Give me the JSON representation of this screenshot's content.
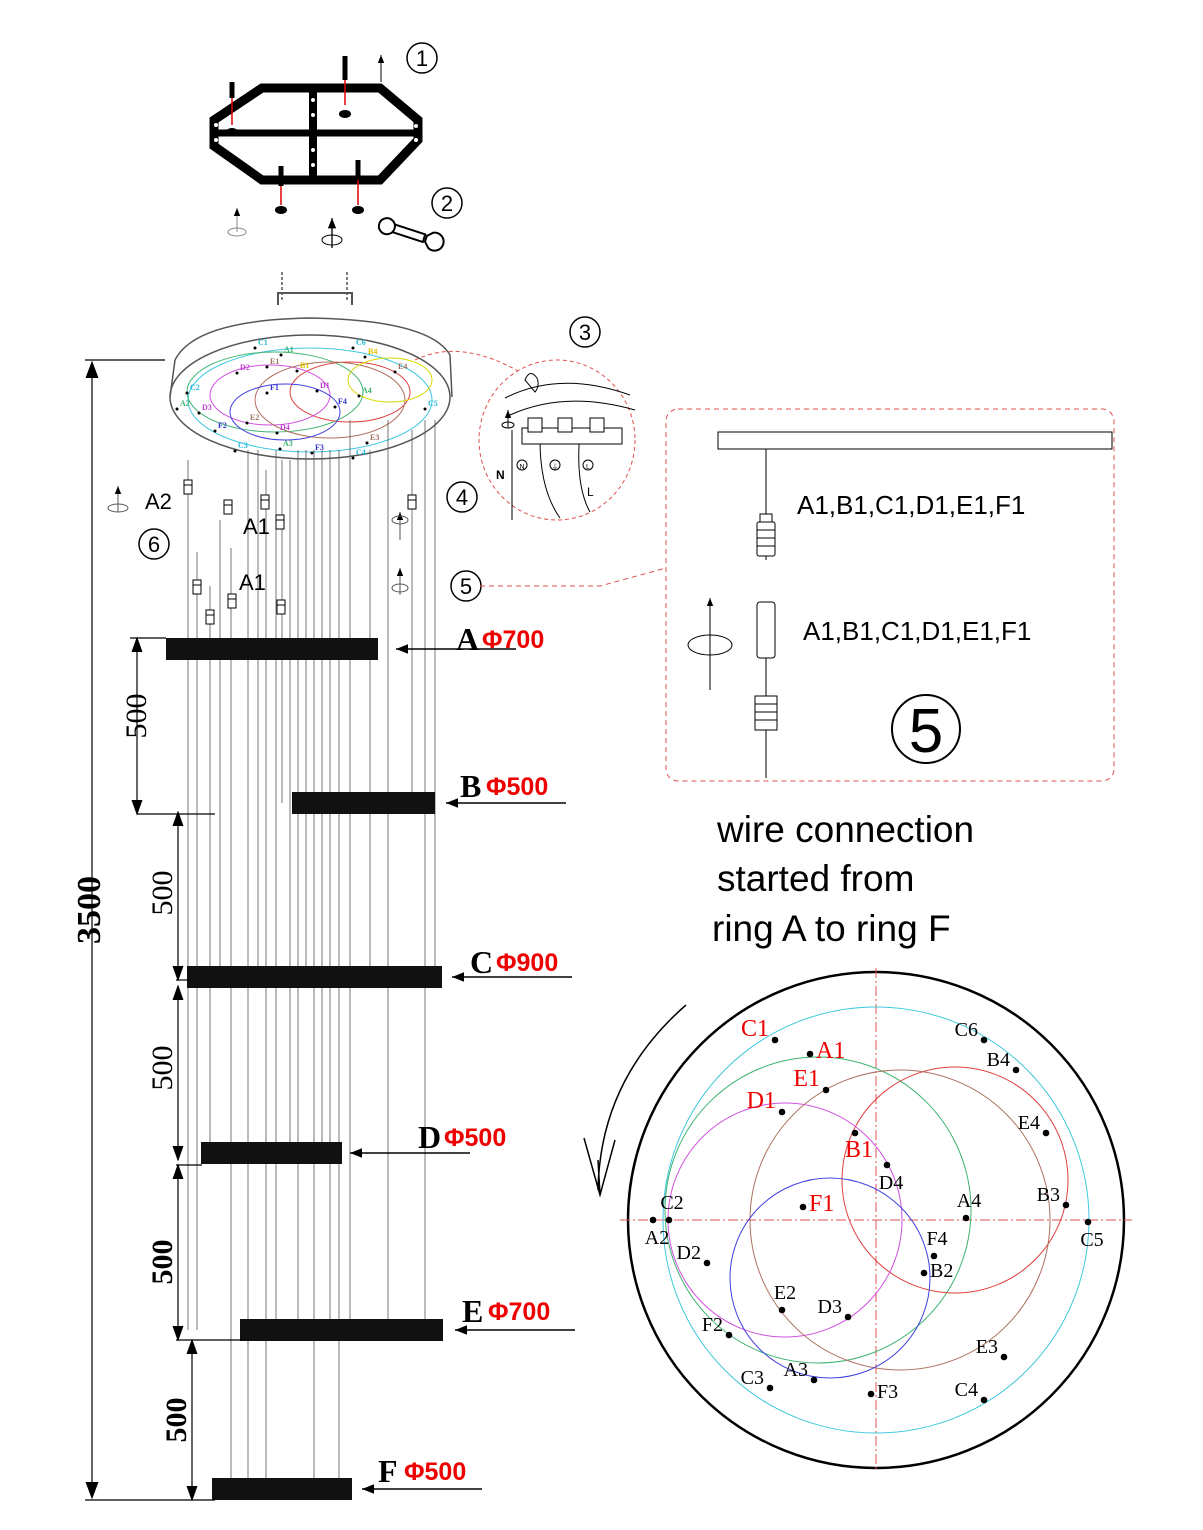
{
  "steps": {
    "s1": "1",
    "s2": "2",
    "s3": "3",
    "s4": "4",
    "s5": "5",
    "s6": "6",
    "s5_big": "5"
  },
  "hangers": {
    "a2": "A2",
    "a1_top": "A1",
    "a1_low": "A1"
  },
  "rings": [
    {
      "letter": "A",
      "dia": "Φ700"
    },
    {
      "letter": "B",
      "dia": "Φ500"
    },
    {
      "letter": "C",
      "dia": "Φ900"
    },
    {
      "letter": "D",
      "dia": "Φ500"
    },
    {
      "letter": "E",
      "dia": "Φ700"
    },
    {
      "letter": "F",
      "dia": "Φ500"
    }
  ],
  "dims": {
    "total": "3500",
    "gap1": "500",
    "gap2": "500",
    "gap3": "500",
    "gap4": "500",
    "gap5": "500"
  },
  "terminal": {
    "n": "N",
    "l": "L",
    "n_sym": "N",
    "e_sym": "⏚",
    "l_sym": "L"
  },
  "detail": {
    "label_top": "A1,B1,C1,D1,E1,F1",
    "label_bottom": "A1,B1,C1,D1,E1,F1"
  },
  "caption": {
    "line1": "wire connection",
    "line2": "started from",
    "line3": "ring A to ring F"
  },
  "points": {
    "C1": "C1",
    "A1": "A1",
    "E1": "E1",
    "D1": "D1",
    "B1": "B1",
    "F1": "F1",
    "C6": "C6",
    "B4": "B4",
    "E4": "E4",
    "D4": "D4",
    "B3": "B3",
    "C2": "C2",
    "A2": "A2",
    "A4": "A4",
    "C5": "C5",
    "F4": "F4",
    "D2": "D2",
    "B2": "B2",
    "E2": "E2",
    "F2": "F2",
    "D3": "D3",
    "E3": "E3",
    "A3": "A3",
    "C3": "C3",
    "F3": "F3",
    "C4": "C4"
  },
  "canopy_labels": [
    "C1",
    "A1",
    "D2",
    "E1",
    "B1",
    "F1",
    "D1",
    "C2",
    "A2",
    "D3",
    "F4",
    "A4",
    "E2",
    "F2",
    "D4",
    "C3",
    "A3",
    "F3",
    "E3",
    "C4",
    "C6",
    "B4",
    "E4",
    "C5"
  ],
  "colors": {
    "ring_A": "#3cb371",
    "ring_B": "#e04040",
    "ring_C": "#40c8e0",
    "ring_D": "#d050e0",
    "ring_E": "#b07060",
    "ring_F": "#4040e0",
    "accent": "#ee0000"
  }
}
